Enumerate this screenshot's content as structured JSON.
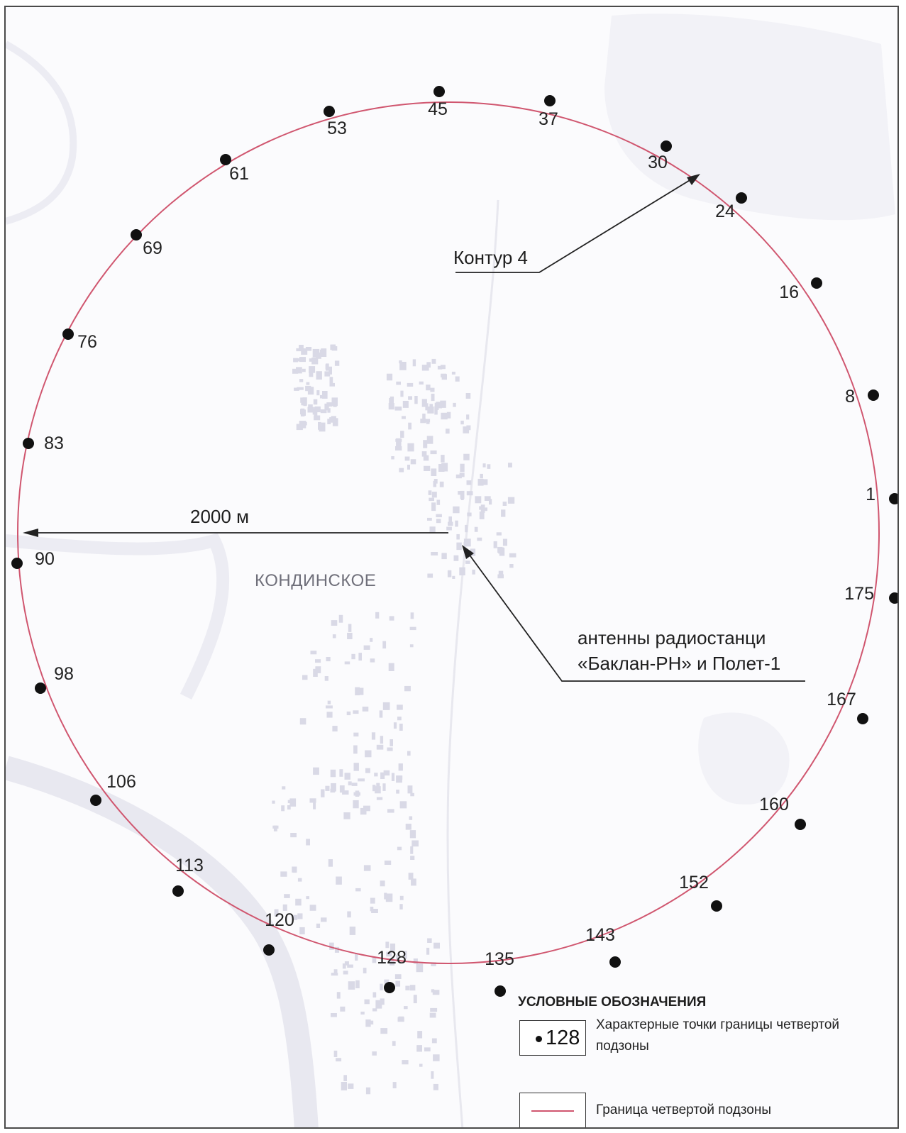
{
  "map": {
    "town_label": "КОНДИНСКОЕ",
    "radius_label": "2000 м",
    "contour_label": "Контур 4",
    "antenna_label_line1": "антенны радиостанци",
    "antenna_label_line2": "«Баклан-РН» и Полет-1"
  },
  "boundary_points": [
    "1",
    "8",
    "16",
    "24",
    "30",
    "37",
    "45",
    "53",
    "61",
    "69",
    "76",
    "83",
    "90",
    "98",
    "106",
    "113",
    "120",
    "128",
    "135",
    "143",
    "152",
    "160",
    "167",
    "175"
  ],
  "legend": {
    "title": "УСЛОВНЫЕ ОБОЗНАЧЕНИЯ",
    "point_sample": "128",
    "point_text": "Характерные точки границы четвертой подзоны",
    "line_text": "Граница четвертой подзоны"
  },
  "colors": {
    "boundary": "#d0566f",
    "points": "#111111",
    "arrows": "#222222",
    "background_roads": "#e6e6ee",
    "buildings": "#d9d9e6"
  }
}
